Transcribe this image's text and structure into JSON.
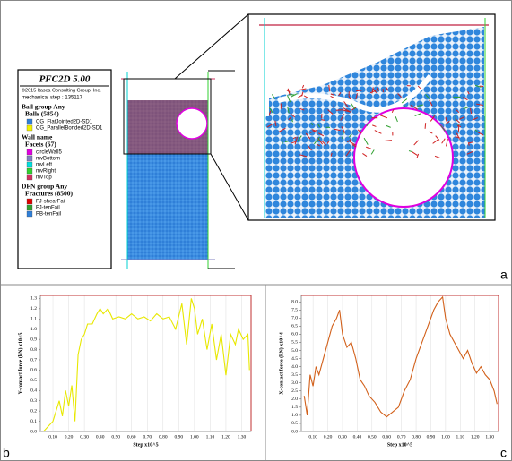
{
  "panel_a": {
    "label": "a",
    "legend": {
      "title": "PFC2D 5.00",
      "copyright": "©2015 Itasca Consulting Group, Inc.",
      "step": "mechanical step : 135117",
      "groups": [
        {
          "heading": "Ball group Any",
          "subheading": "Balls (5854)",
          "items": [
            {
              "name": "CG_FlatJointed2D-SD1",
              "color": "#2f7fd8"
            },
            {
              "name": "CG_ParallelBonded2D-SD1",
              "color": "#f2f200"
            }
          ]
        },
        {
          "heading": "Wall name",
          "subheading": "Facets (67)",
          "items": [
            {
              "name": "circleWall5",
              "color": "#e000e0"
            },
            {
              "name": "mvBottom",
              "color": "#8080c0"
            },
            {
              "name": "mvLeft",
              "color": "#00e0e0"
            },
            {
              "name": "mvRight",
              "color": "#30d030"
            },
            {
              "name": "mvTop",
              "color": "#d03060"
            }
          ]
        },
        {
          "heading": "DFN group Any",
          "subheading": "Fractures (8500)",
          "items": [
            {
              "name": "FJ-shearFail",
              "color": "#e00000"
            },
            {
              "name": "FJ-tenFail",
              "color": "#30a030"
            },
            {
              "name": "PB-tenFail",
              "color": "#2f7fd8"
            }
          ]
        }
      ]
    }
  },
  "chart_data": [
    {
      "type": "line",
      "panel": "b",
      "x_label": "Step x10^5",
      "y_label": "Y-contact force (kN) x10^5",
      "color": "#e8e800",
      "x": [
        0.04,
        0.07,
        0.1,
        0.12,
        0.14,
        0.16,
        0.18,
        0.2,
        0.22,
        0.24,
        0.26,
        0.28,
        0.3,
        0.32,
        0.35,
        0.38,
        0.4,
        0.42,
        0.45,
        0.48,
        0.52,
        0.56,
        0.6,
        0.64,
        0.68,
        0.72,
        0.76,
        0.8,
        0.84,
        0.88,
        0.92,
        0.95,
        0.98,
        1.0,
        1.02,
        1.05,
        1.08,
        1.11,
        1.14,
        1.17,
        1.2,
        1.23,
        1.26,
        1.28,
        1.31,
        1.34,
        1.35
      ],
      "values": [
        0.0,
        0.05,
        0.1,
        0.2,
        0.3,
        0.15,
        0.4,
        0.25,
        0.45,
        0.1,
        0.75,
        0.9,
        0.95,
        1.05,
        1.05,
        1.15,
        1.2,
        1.15,
        1.2,
        1.1,
        1.12,
        1.1,
        1.15,
        1.1,
        1.12,
        1.08,
        1.15,
        1.1,
        1.12,
        1.0,
        1.25,
        0.85,
        1.3,
        1.2,
        0.95,
        1.1,
        0.8,
        1.05,
        0.7,
        0.95,
        0.55,
        0.95,
        0.85,
        1.0,
        0.9,
        0.95,
        0.6
      ],
      "xlim": [
        0.02,
        1.36
      ],
      "ylim": [
        0,
        1.33
      ],
      "xticks": [
        {
          "value": 0.1,
          "label": "0.10"
        },
        {
          "value": 0.2,
          "label": "0.20"
        },
        {
          "value": 0.3,
          "label": "0.30"
        },
        {
          "value": 0.4,
          "label": "0.40"
        },
        {
          "value": 0.5,
          "label": "0.50"
        },
        {
          "value": 0.6,
          "label": "0.60"
        },
        {
          "value": 0.7,
          "label": "0.70"
        },
        {
          "value": 0.8,
          "label": "0.80"
        },
        {
          "value": 0.9,
          "label": "0.90"
        },
        {
          "value": 1.0,
          "label": "1.00"
        },
        {
          "value": 1.1,
          "label": "1.10"
        },
        {
          "value": 1.2,
          "label": "1.20"
        },
        {
          "value": 1.3,
          "label": "1.30"
        }
      ],
      "yticks": [
        {
          "value": 0,
          "label": "0.0"
        },
        0.1,
        0.2,
        0.3,
        0.4,
        0.5,
        0.6,
        0.7,
        0.8,
        0.9,
        {
          "value": 1,
          "label": "1.0"
        },
        1.1,
        1.2,
        1.3
      ],
      "grid": true
    },
    {
      "type": "line",
      "panel": "c",
      "x_label": "Step x10^5",
      "y_label": "X-contact force (kN) x10^4",
      "color": "#d2601a",
      "x": [
        0.04,
        0.06,
        0.08,
        0.1,
        0.12,
        0.14,
        0.17,
        0.2,
        0.23,
        0.26,
        0.28,
        0.3,
        0.33,
        0.36,
        0.39,
        0.42,
        0.45,
        0.48,
        0.52,
        0.56,
        0.6,
        0.64,
        0.68,
        0.72,
        0.76,
        0.8,
        0.84,
        0.88,
        0.92,
        0.95,
        0.98,
        1.0,
        1.03,
        1.06,
        1.09,
        1.12,
        1.15,
        1.18,
        1.21,
        1.24,
        1.27,
        1.3,
        1.33,
        1.35
      ],
      "values": [
        2.2,
        1.0,
        3.5,
        2.8,
        4.0,
        3.5,
        4.5,
        5.5,
        6.5,
        7.0,
        7.5,
        6.0,
        5.2,
        5.5,
        4.5,
        3.2,
        2.8,
        2.2,
        1.8,
        1.2,
        0.9,
        1.2,
        1.5,
        2.5,
        3.2,
        4.5,
        5.5,
        6.5,
        7.5,
        8.0,
        8.3,
        7.0,
        6.0,
        5.5,
        5.0,
        4.5,
        5.0,
        4.2,
        3.6,
        4.0,
        3.5,
        3.2,
        2.5,
        1.7
      ],
      "xlim": [
        0.02,
        1.36
      ],
      "ylim": [
        0,
        8.4
      ],
      "xticks": [
        {
          "value": 0.1,
          "label": "0.10"
        },
        {
          "value": 0.2,
          "label": "0.20"
        },
        {
          "value": 0.3,
          "label": "0.30"
        },
        {
          "value": 0.4,
          "label": "0.40"
        },
        {
          "value": 0.5,
          "label": "0.50"
        },
        {
          "value": 0.6,
          "label": "0.60"
        },
        {
          "value": 0.7,
          "label": "0.70"
        },
        {
          "value": 0.8,
          "label": "0.80"
        },
        {
          "value": 0.9,
          "label": "0.90"
        },
        {
          "value": 1.0,
          "label": "1.00"
        },
        {
          "value": 1.1,
          "label": "1.10"
        },
        {
          "value": 1.2,
          "label": "1.20"
        },
        {
          "value": 1.3,
          "label": "1.30"
        }
      ],
      "yticks": [
        {
          "value": 0,
          "label": "0.0"
        },
        0.5,
        {
          "value": 1,
          "label": "1.0"
        },
        1.5,
        {
          "value": 2,
          "label": "2.0"
        },
        2.5,
        {
          "value": 3,
          "label": "3.0"
        },
        3.5,
        {
          "value": 4,
          "label": "4.0"
        },
        4.5,
        {
          "value": 5,
          "label": "5.0"
        },
        5.5,
        {
          "value": 6,
          "label": "6.0"
        },
        6.5,
        {
          "value": 7,
          "label": "7.0"
        },
        7.5,
        {
          "value": 8,
          "label": "8.0"
        }
      ],
      "grid": true
    }
  ]
}
